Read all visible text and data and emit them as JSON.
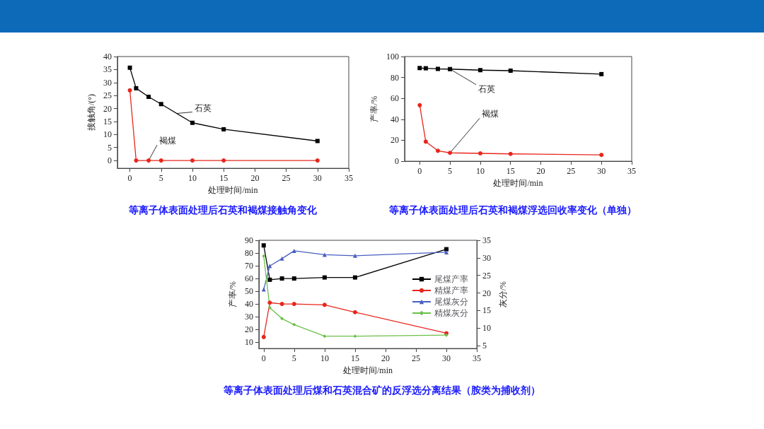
{
  "chart_data": [
    {
      "type": "line",
      "title": "等离子体表面处理后石英和褐煤接触角变化",
      "xlabel": "处理时间/min",
      "ylabel": "接触角/(°)",
      "x": [
        0,
        1,
        3,
        5,
        10,
        15,
        30
      ],
      "xlim": [
        -2,
        35
      ],
      "xticks": [
        0,
        5,
        10,
        15,
        20,
        25,
        30,
        35
      ],
      "ylim": [
        -3,
        40
      ],
      "yticks": [
        0,
        5,
        10,
        15,
        20,
        25,
        30,
        35,
        40
      ],
      "grid": false,
      "legend": false,
      "series": [
        {
          "name": "石英",
          "color": "#000000",
          "marker": "square",
          "values": [
            35.7,
            27.8,
            24.5,
            21.7,
            14.5,
            12,
            7.5
          ]
        },
        {
          "name": "褐煤",
          "color": "#e8261c",
          "marker": "circle",
          "values": [
            27,
            0,
            0,
            0,
            0,
            0,
            0
          ]
        }
      ]
    },
    {
      "type": "line",
      "title": "等离子体表面处理后石英和褐煤浮选回收率变化（单独）",
      "xlabel": "处理时间/min",
      "ylabel": "产率/%",
      "x": [
        0,
        1,
        3,
        5,
        10,
        15,
        30
      ],
      "xlim": [
        -2.5,
        35
      ],
      "xticks": [
        0,
        5,
        10,
        15,
        20,
        25,
        30,
        35
      ],
      "ylim": [
        0,
        100
      ],
      "yticks": [
        0,
        20,
        40,
        60,
        80,
        100
      ],
      "grid": false,
      "legend": false,
      "series": [
        {
          "name": "石英",
          "color": "#000000",
          "marker": "square",
          "values": [
            89,
            88.8,
            88.2,
            88,
            87,
            86.5,
            83.2
          ]
        },
        {
          "name": "褐煤",
          "color": "#e8261c",
          "marker": "circle",
          "values": [
            53.5,
            18.7,
            10,
            8,
            7.5,
            7,
            6
          ]
        }
      ]
    },
    {
      "type": "line",
      "title": "等离子体表面处理后煤和石英混合矿的反浮选分离结果（胺类为捕收剂）",
      "xlabel": "处理时间/min",
      "ylabel": "产率/%",
      "y2label": "灰分/%",
      "x": [
        0,
        1,
        3,
        5,
        10,
        15,
        30
      ],
      "xlim": [
        -0.8,
        35
      ],
      "xticks": [
        0,
        5,
        10,
        15,
        20,
        25,
        30,
        35
      ],
      "ylim": [
        5,
        90
      ],
      "yticks": [
        10,
        20,
        30,
        40,
        50,
        60,
        70,
        80,
        90
      ],
      "y2lim": [
        4.2,
        35
      ],
      "y2ticks": [
        5,
        10,
        15,
        20,
        25,
        30,
        35
      ],
      "grid": false,
      "legend": "right",
      "series": [
        {
          "name": "尾煤产率",
          "color": "#000000",
          "marker": "square",
          "values": [
            86,
            59,
            60,
            60,
            60.8,
            60.8,
            83
          ]
        },
        {
          "name": "精煤产率",
          "color": "#e8261c",
          "marker": "circle",
          "values": [
            14,
            41,
            40,
            40,
            39.3,
            33.5,
            17
          ]
        },
        {
          "name": "尾煤灰分",
          "color": "#4a5fc1",
          "marker": "triangle",
          "axis": "y2",
          "values": [
            21,
            27.7,
            29.8,
            32,
            30.9,
            30.6,
            31.6
          ]
        },
        {
          "name": "精煤灰分",
          "color": "#6cc04a",
          "marker": "diamond",
          "axis": "y2",
          "values": [
            30.5,
            15.8,
            12.7,
            11,
            7.7,
            7.7,
            8
          ]
        }
      ]
    }
  ]
}
